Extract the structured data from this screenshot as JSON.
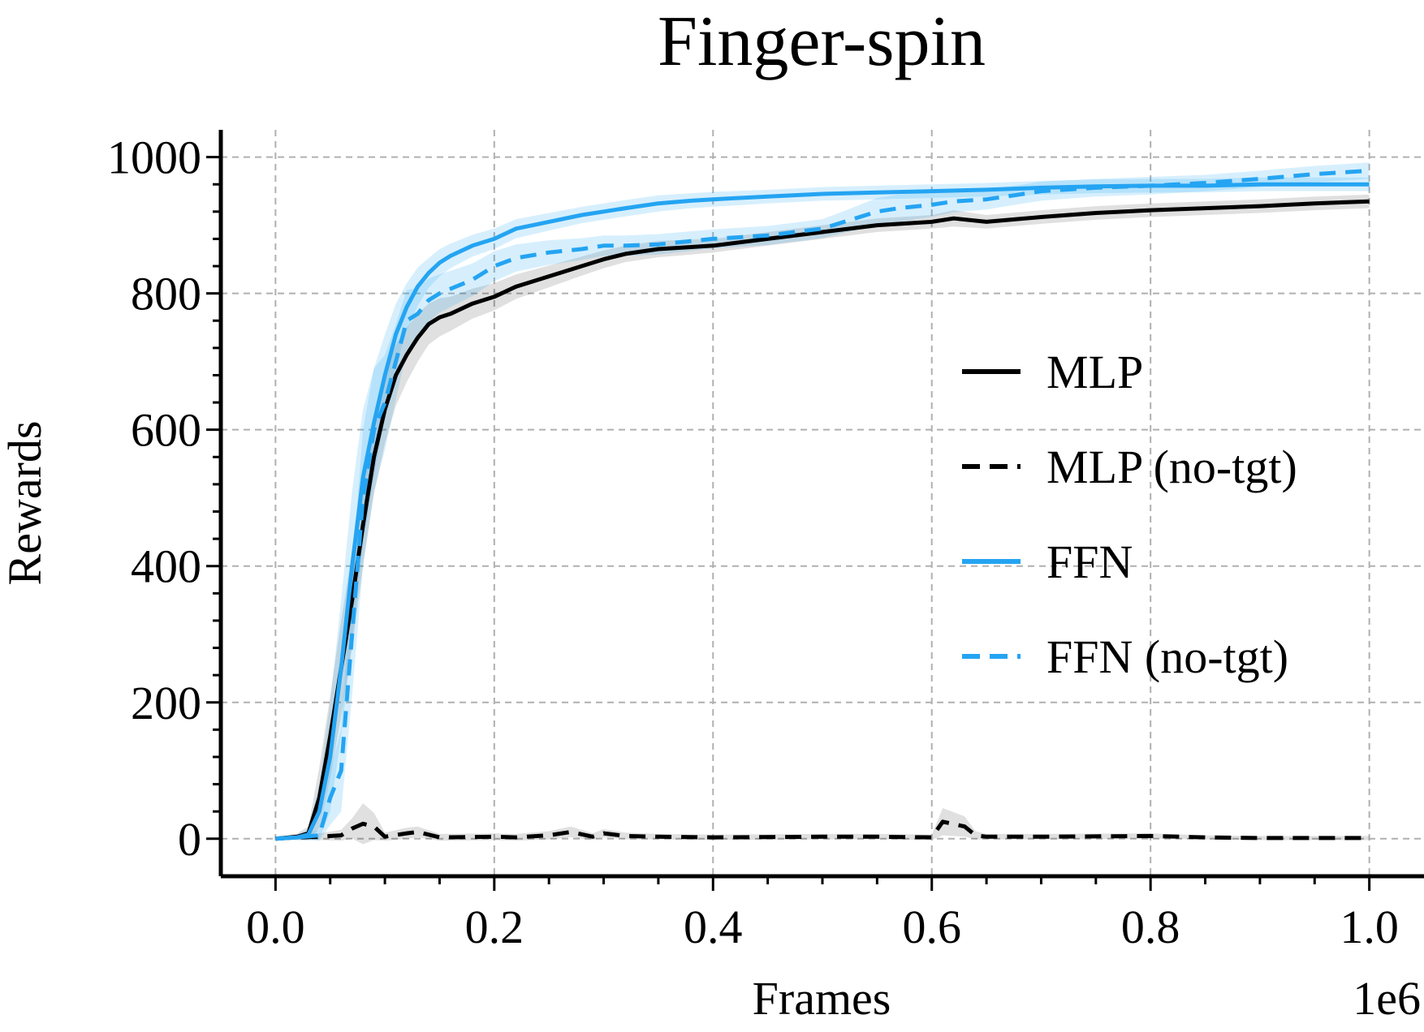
{
  "chart_data": {
    "type": "line",
    "title": "Finger-spin",
    "xlabel": "Frames",
    "ylabel": "Rewards",
    "x_offset_label": "1e6",
    "xlim": [
      -0.05,
      1.05
    ],
    "ylim": [
      -55,
      1040
    ],
    "x_ticks": [
      0.0,
      0.2,
      0.4,
      0.6,
      0.8,
      1.0
    ],
    "x_tick_labels": [
      "0.0",
      "0.2",
      "0.4",
      "0.6",
      "0.8",
      "1.0"
    ],
    "y_ticks": [
      0,
      200,
      400,
      600,
      800,
      1000
    ],
    "y_tick_labels": [
      "0",
      "200",
      "400",
      "600",
      "800",
      "1000"
    ],
    "grid": true,
    "legend_position": "center-right",
    "series": [
      {
        "name": "MLP",
        "color": "#000000",
        "dash": "solid",
        "x": [
          0,
          0.02,
          0.03,
          0.04,
          0.05,
          0.06,
          0.07,
          0.08,
          0.09,
          0.1,
          0.11,
          0.12,
          0.13,
          0.14,
          0.15,
          0.16,
          0.18,
          0.2,
          0.22,
          0.25,
          0.28,
          0.3,
          0.32,
          0.35,
          0.38,
          0.4,
          0.45,
          0.5,
          0.55,
          0.6,
          0.62,
          0.65,
          0.7,
          0.75,
          0.8,
          0.85,
          0.9,
          0.95,
          1.0
        ],
        "y": [
          0,
          3,
          8,
          60,
          150,
          250,
          350,
          460,
          560,
          630,
          680,
          710,
          735,
          755,
          765,
          770,
          785,
          795,
          810,
          825,
          840,
          850,
          858,
          865,
          868,
          870,
          880,
          890,
          900,
          905,
          910,
          905,
          912,
          918,
          922,
          925,
          928,
          932,
          935
        ],
        "band": [
          0,
          5,
          10,
          45,
          60,
          70,
          70,
          60,
          55,
          50,
          45,
          40,
          35,
          30,
          28,
          25,
          22,
          20,
          18,
          16,
          14,
          13,
          12,
          12,
          11,
          10,
          10,
          10,
          10,
          10,
          12,
          10,
          10,
          10,
          10,
          10,
          10,
          10,
          10
        ]
      },
      {
        "name": "MLP (no-tgt)",
        "color": "#000000",
        "dash": "dashed",
        "x": [
          0,
          0.02,
          0.04,
          0.06,
          0.07,
          0.08,
          0.09,
          0.1,
          0.12,
          0.13,
          0.15,
          0.2,
          0.22,
          0.25,
          0.27,
          0.29,
          0.3,
          0.32,
          0.35,
          0.4,
          0.5,
          0.55,
          0.6,
          0.61,
          0.63,
          0.64,
          0.65,
          0.7,
          0.8,
          0.85,
          0.9,
          1.0
        ],
        "y": [
          0,
          2,
          3,
          5,
          15,
          22,
          18,
          3,
          8,
          10,
          2,
          3,
          2,
          5,
          10,
          3,
          8,
          4,
          3,
          2,
          3,
          3,
          2,
          25,
          18,
          5,
          3,
          3,
          4,
          2,
          1,
          1
        ],
        "band": [
          0,
          3,
          5,
          8,
          15,
          30,
          20,
          6,
          8,
          8,
          5,
          5,
          5,
          6,
          8,
          5,
          6,
          5,
          4,
          4,
          4,
          4,
          4,
          20,
          15,
          6,
          4,
          4,
          4,
          3,
          3,
          3
        ]
      },
      {
        "name": "FFN",
        "color": "#24a4f2",
        "dash": "solid",
        "x": [
          0,
          0.02,
          0.03,
          0.04,
          0.05,
          0.06,
          0.07,
          0.08,
          0.09,
          0.1,
          0.11,
          0.12,
          0.13,
          0.14,
          0.15,
          0.16,
          0.18,
          0.2,
          0.22,
          0.25,
          0.28,
          0.3,
          0.32,
          0.35,
          0.38,
          0.4,
          0.45,
          0.5,
          0.55,
          0.6,
          0.65,
          0.7,
          0.75,
          0.8,
          0.85,
          0.9,
          0.95,
          1.0
        ],
        "y": [
          0,
          2,
          6,
          40,
          120,
          250,
          400,
          530,
          610,
          680,
          740,
          780,
          810,
          830,
          845,
          855,
          870,
          880,
          895,
          905,
          915,
          920,
          925,
          932,
          936,
          938,
          942,
          946,
          948,
          950,
          952,
          955,
          957,
          958,
          958,
          960,
          960,
          960
        ],
        "band": [
          0,
          4,
          8,
          40,
          80,
          100,
          110,
          100,
          80,
          60,
          45,
          35,
          28,
          22,
          20,
          18,
          16,
          15,
          14,
          13,
          12,
          12,
          12,
          12,
          11,
          11,
          10,
          10,
          10,
          10,
          10,
          10,
          10,
          10,
          10,
          10,
          10,
          10
        ]
      },
      {
        "name": "FFN (no-tgt)",
        "color": "#24a4f2",
        "dash": "dashed",
        "x": [
          0,
          0.02,
          0.04,
          0.05,
          0.06,
          0.07,
          0.08,
          0.09,
          0.1,
          0.11,
          0.12,
          0.13,
          0.14,
          0.15,
          0.18,
          0.2,
          0.22,
          0.25,
          0.28,
          0.3,
          0.32,
          0.35,
          0.4,
          0.45,
          0.5,
          0.52,
          0.55,
          0.57,
          0.6,
          0.62,
          0.65,
          0.68,
          0.7,
          0.75,
          0.8,
          0.85,
          0.9,
          0.95,
          1.0
        ],
        "y": [
          0,
          2,
          5,
          60,
          100,
          300,
          500,
          600,
          640,
          700,
          760,
          770,
          790,
          800,
          820,
          840,
          852,
          860,
          865,
          870,
          870,
          872,
          880,
          885,
          895,
          905,
          920,
          925,
          930,
          935,
          938,
          945,
          950,
          955,
          958,
          962,
          968,
          975,
          980
        ],
        "band": [
          0,
          3,
          8,
          40,
          60,
          90,
          100,
          90,
          70,
          55,
          45,
          38,
          32,
          28,
          24,
          22,
          20,
          18,
          16,
          15,
          15,
          15,
          14,
          14,
          14,
          16,
          20,
          20,
          18,
          16,
          15,
          14,
          14,
          13,
          13,
          12,
          12,
          12,
          12
        ]
      }
    ]
  }
}
